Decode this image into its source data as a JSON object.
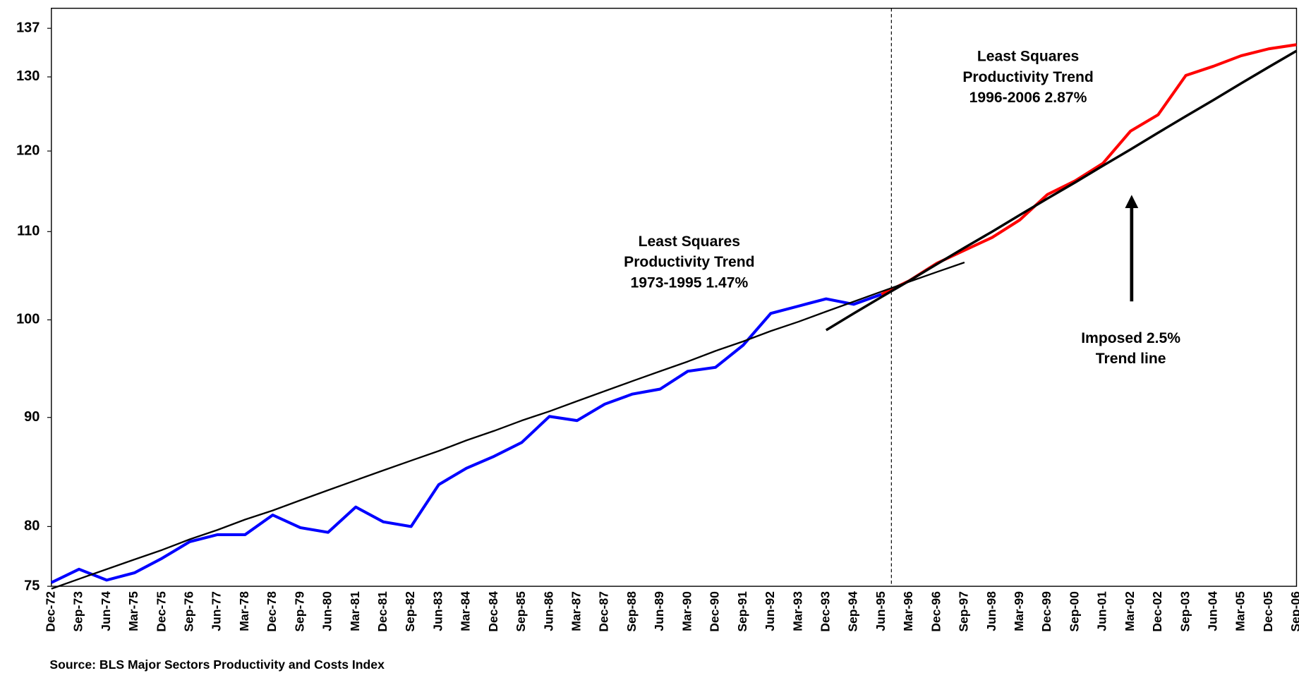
{
  "chart_data": {
    "type": "line",
    "categories": [
      "Dec-72",
      "Sep-73",
      "Jun-74",
      "Mar-75",
      "Dec-75",
      "Sep-76",
      "Jun-77",
      "Mar-78",
      "Dec-78",
      "Sep-79",
      "Jun-80",
      "Mar-81",
      "Dec-81",
      "Sep-82",
      "Jun-83",
      "Mar-84",
      "Dec-84",
      "Sep-85",
      "Jun-86",
      "Mar-87",
      "Dec-87",
      "Sep-88",
      "Jun-89",
      "Mar-90",
      "Dec-90",
      "Sep-91",
      "Jun-92",
      "Mar-93",
      "Dec-93",
      "Sep-94",
      "Jun-95",
      "Mar-96",
      "Dec-96",
      "Sep-97",
      "Jun-98",
      "Mar-99",
      "Dec-99",
      "Sep-00",
      "Jun-01",
      "Mar-02",
      "Dec-02",
      "Sep-03",
      "Jun-04",
      "Mar-05",
      "Dec-05",
      "Sep-06"
    ],
    "series": [
      {
        "color": "#0000ff",
        "values": [
          75.3,
          76.4,
          75.5,
          76.1,
          77.3,
          78.7,
          79.3,
          79.3,
          81,
          79.9,
          79.5,
          81.7,
          80.4,
          80,
          83.7,
          85.2,
          86.3,
          87.6,
          90.1,
          89.7,
          91.3,
          92.3,
          92.8,
          94.6,
          95,
          97.3,
          100.7,
          101.5,
          102.3,
          101.7,
          102.8,
          null,
          null,
          null,
          null,
          null,
          null,
          null,
          null,
          null,
          null,
          null,
          null,
          null,
          null,
          null
        ]
      },
      {
        "color": "#ff0000",
        "values": [
          null,
          null,
          null,
          null,
          null,
          null,
          null,
          null,
          null,
          null,
          null,
          null,
          null,
          null,
          null,
          null,
          null,
          null,
          null,
          null,
          null,
          null,
          null,
          null,
          null,
          null,
          null,
          null,
          null,
          null,
          102.8,
          104.3,
          106.3,
          107.8,
          109.3,
          111.4,
          114.5,
          116.2,
          118.4,
          122.6,
          124.8,
          130.2,
          131.5,
          133,
          134,
          134.6
        ]
      },
      {
        "color": "#000000",
        "values": [
          74.8,
          75.6,
          76.4,
          77.2,
          78,
          78.9,
          79.7,
          80.6,
          81.4,
          82.3,
          83.2,
          84.1,
          85,
          85.9,
          86.8,
          87.8,
          88.7,
          89.7,
          90.6,
          91.6,
          92.6,
          93.6,
          94.6,
          95.6,
          96.7,
          97.7,
          98.8,
          99.8,
          100.9,
          102,
          103.1,
          104.2,
          105.3,
          106.4,
          null,
          null,
          null,
          null,
          null,
          null,
          null,
          null,
          null,
          null,
          null,
          null
        ]
      },
      {
        "color": "#000000",
        "values": [
          null,
          null,
          null,
          null,
          null,
          null,
          null,
          null,
          null,
          null,
          null,
          null,
          null,
          null,
          null,
          null,
          null,
          null,
          null,
          null,
          null,
          null,
          null,
          null,
          null,
          null,
          null,
          null,
          98.9,
          100.7,
          102.5,
          104.3,
          106.2,
          108.1,
          110,
          112,
          114,
          116,
          118.1,
          120.2,
          122.4,
          124.6,
          126.8,
          129.1,
          131.4,
          133.7
        ]
      }
    ],
    "ylim": [
      75,
      140
    ],
    "yticks": [
      75,
      80,
      90,
      100,
      110,
      120,
      130,
      137
    ],
    "log_scale": true,
    "annotations": [
      [
        "Least Squares",
        "Productivity Trend",
        "1973-1995 1.47%"
      ],
      [
        "Least Squares",
        "Productivity Trend",
        "1996-2006 2.87%"
      ],
      [
        "Imposed 2.5%",
        "Trend line"
      ]
    ],
    "source": "Source: BLS Major Sectors Productivity and Costs Index"
  }
}
